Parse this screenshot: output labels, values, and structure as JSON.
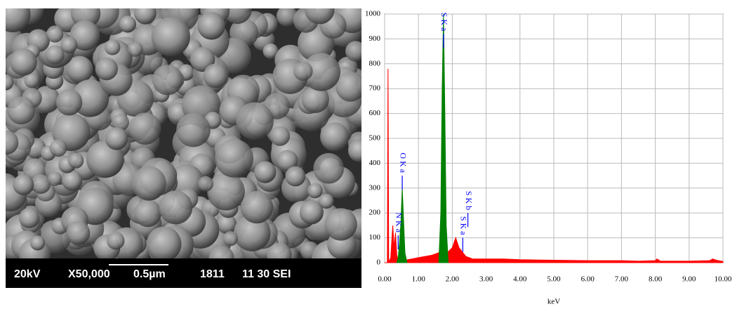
{
  "sem_image": {
    "info_bar": [
      "20kV",
      "X50,000",
      "0.5µm",
      "1811",
      "11 30 SEI"
    ]
  },
  "chart_data": {
    "type": "area",
    "xlabel": "keV",
    "xlim": [
      0,
      10
    ],
    "ylim": [
      0,
      1000
    ],
    "xticks": [
      {
        "value": 0,
        "label": "0.00"
      },
      {
        "value": 1,
        "label": "1.00"
      },
      {
        "value": 2,
        "label": "2.00"
      },
      {
        "value": 3,
        "label": "3.00"
      },
      {
        "value": 4,
        "label": "4.00"
      },
      {
        "value": 5,
        "label": "5.00"
      },
      {
        "value": 6,
        "label": "6.00"
      },
      {
        "value": 7,
        "label": "7.00"
      },
      {
        "value": 8,
        "label": "8.00"
      },
      {
        "value": 9,
        "label": "9.00"
      },
      {
        "value": 10,
        "label": "10.00"
      }
    ],
    "yticks": [
      0,
      100,
      200,
      300,
      400,
      500,
      600,
      700,
      800,
      900,
      1000
    ],
    "grid": true,
    "series": [
      {
        "color": "#ff0000",
        "x": [
          0,
          0.08,
          0.1,
          0.12,
          0.18,
          0.24,
          0.28,
          0.32,
          0.36,
          0.4,
          0.6,
          0.8,
          1.0,
          1.2,
          1.4,
          1.6,
          1.7,
          1.85,
          2.0,
          2.1,
          2.2,
          2.4,
          2.6,
          3.0,
          3.5,
          4.0,
          5.0,
          6.0,
          7.0,
          7.5,
          8.0,
          8.05,
          8.15,
          9.0,
          9.6,
          9.7,
          9.8,
          10.0
        ],
        "values": [
          0,
          0,
          780,
          0,
          20,
          150,
          60,
          120,
          30,
          10,
          10,
          15,
          20,
          25,
          30,
          40,
          50,
          40,
          60,
          100,
          60,
          25,
          15,
          15,
          15,
          12,
          10,
          8,
          8,
          6,
          8,
          15,
          6,
          6,
          8,
          15,
          10,
          5
        ]
      },
      {
        "color": "#008000",
        "x": [
          0.36,
          0.4,
          0.44,
          0.48,
          0.52,
          0.56,
          0.6,
          0.66,
          1.0,
          1.6,
          1.66,
          1.7,
          1.74,
          1.78,
          1.82,
          1.88
        ],
        "values": [
          0,
          20,
          80,
          160,
          300,
          170,
          40,
          0,
          null,
          0,
          200,
          700,
          1000,
          600,
          150,
          0
        ]
      }
    ],
    "annotation_color": "#0000ff",
    "annotations": [
      {
        "text": "N K a",
        "x": 0.4,
        "y": 110
      },
      {
        "text": "O K a",
        "x": 0.52,
        "y": 350
      },
      {
        "text": "S K a",
        "x": 1.74,
        "y": 920
      },
      {
        "text": "S K a",
        "x": 2.31,
        "y": 100
      },
      {
        "text": "S K b",
        "x": 2.46,
        "y": 200
      }
    ]
  }
}
